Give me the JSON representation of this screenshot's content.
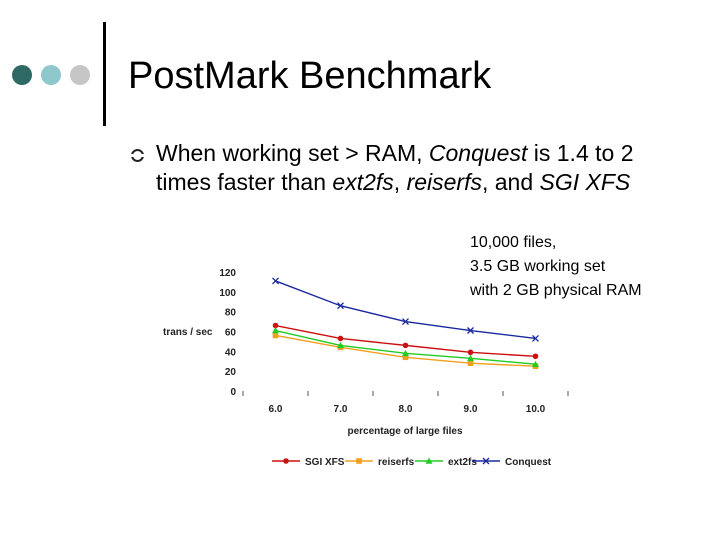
{
  "colors": {
    "dot_dark": "#2e6a63",
    "dot_mid": "#8ec8cc",
    "dot_light": "#c6c6c6"
  },
  "slide": {
    "title": "PostMark Benchmark",
    "bullet": {
      "text_1": "When working set > RAM, ",
      "em_1": "Conquest",
      "text_2": " is 1.4 to 2 times faster than ",
      "em_2": "ext2fs",
      "text_3": ", ",
      "em_3": "reiserfs",
      "text_4": ", and ",
      "em_4": "SGI XFS"
    },
    "note": [
      "10,000 files,",
      "3.5 GB working set",
      "with 2 GB physical RAM"
    ]
  },
  "chart_data": {
    "type": "line",
    "xlabel": "percentage of large files",
    "ylabel": "trans / sec",
    "categories": [
      "6.0",
      "7.0",
      "8.0",
      "9.0",
      "10.0"
    ],
    "ylim": [
      0,
      120
    ],
    "yticks": [
      "0",
      "20",
      "40",
      "60",
      "80",
      "100",
      "120"
    ],
    "grid": false,
    "legend_position": "bottom",
    "series": [
      {
        "name": "SGI XFS",
        "color": "#cc1111",
        "marker": "circle",
        "values": [
          66,
          53,
          46,
          39,
          35
        ]
      },
      {
        "name": "reiserfs",
        "color": "#f0a020",
        "marker": "square",
        "values": [
          56,
          44,
          34,
          28,
          25
        ]
      },
      {
        "name": "ext2fs",
        "color": "#22cc22",
        "marker": "triangle",
        "values": [
          61,
          46,
          38,
          33,
          27
        ]
      },
      {
        "name": "Conquest",
        "color": "#1a2aa0",
        "marker": "x",
        "values": [
          111,
          86,
          70,
          61,
          53
        ]
      }
    ]
  }
}
